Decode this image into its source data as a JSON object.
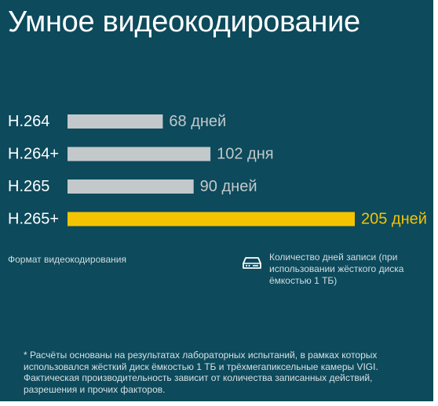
{
  "title": "Умное видеокодирование",
  "chart_data": {
    "type": "bar",
    "orientation": "horizontal",
    "categories": [
      "H.264",
      "H.264+",
      "H.265",
      "H.265+"
    ],
    "values": [
      68,
      102,
      90,
      205
    ],
    "value_labels": [
      "68 дней",
      "102 дня",
      "90 дней",
      "205 дней"
    ],
    "highlight_index": 3,
    "xlim": [
      0,
      205
    ],
    "grid": false,
    "ylabel": "Формат видеокодирования",
    "xlabel": "Количество дней записи (при использовании жёсткого диска ёмкостью 1 ТБ)",
    "colors": {
      "bar": "#c3c8ca",
      "highlight": "#f5c400",
      "background": "#0c4a5c"
    }
  },
  "axis_title": "Формат видеокодирования",
  "legend": {
    "icon": "hard-drive-icon",
    "text": "Количество дней записи (при использовании жёсткого диска ёмкостью 1 ТБ)"
  },
  "footnote": "* Расчёты основаны на результатах лабораторных испытаний, в рамках которых использовался жёсткий диск ёмкостью 1 ТБ и трёхмегапиксельные камеры VIGI. Фактическая производительность зависит от количества записанных действий, разрешения и прочих факторов."
}
